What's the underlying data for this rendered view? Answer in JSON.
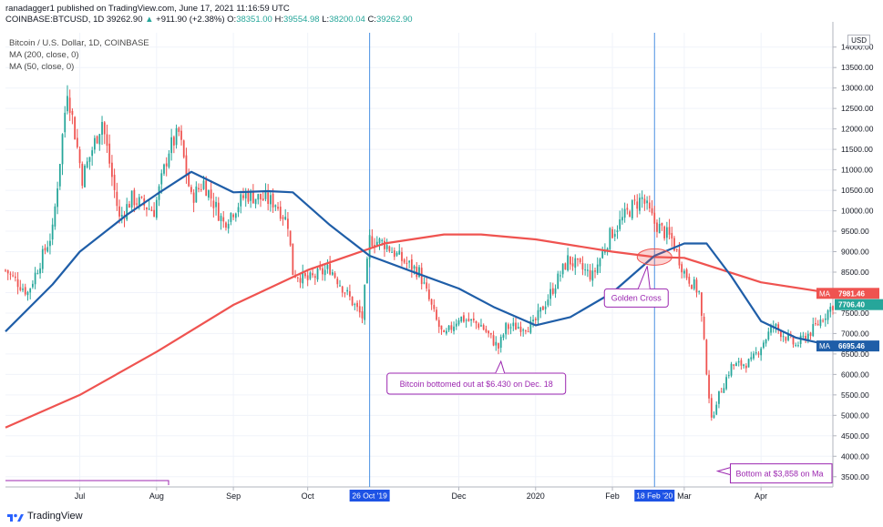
{
  "header": {
    "publisher_line": "ranadagger1 published on TradingView.com, June 17, 2021 11:16:59 UTC",
    "symbol": "COINBASE:BTCUSD, 1D",
    "price": "39262.90",
    "change": "+911.90 (+2.38%)",
    "o_label": "O:",
    "o": "38351.00",
    "h_label": "H:",
    "h": "39554.98",
    "l_label": "L:",
    "l": "38200.04",
    "c_label": "C:",
    "c": "39262.90"
  },
  "legend": {
    "title": "Bitcoin / U.S. Dollar, 1D, COINBASE",
    "ma200": "MA (200, close, 0)",
    "ma50": "MA (50, close, 0)"
  },
  "currency_label": "USD",
  "footer_brand": "TradingView",
  "colors": {
    "up": "#26a69a",
    "down": "#ef5350",
    "ma200": "#ef5350",
    "ma50": "#1f5ea8",
    "marker_line": "#4a90e2",
    "annotation": "#9c27b0",
    "grid": "#f0f3fa"
  },
  "chart_data": {
    "type": "candlestick",
    "title": "Bitcoin / U.S. Dollar, 1D, COINBASE",
    "y_axis": {
      "ylim": [
        3250,
        14350
      ],
      "ticks": [
        3500,
        4000,
        4500,
        5000,
        5500,
        6000,
        6500,
        7000,
        7500,
        8000,
        8500,
        9000,
        9500,
        10000,
        10500,
        11000,
        11500,
        12000,
        12500,
        13000,
        13500,
        14000
      ],
      "tick_labels": [
        "3500.00",
        "4000.00",
        "4500.00",
        "5000.00",
        "5500.00",
        "6000.00",
        "6500.00",
        "7000.00",
        "7500.00",
        "8000.00",
        "8500.00",
        "9000.00",
        "9500.00",
        "10000.00",
        "10500.00",
        "11000.00",
        "11500.00",
        "12000.00",
        "12500.00",
        "13000.00",
        "13500.00",
        "14000.00"
      ],
      "side": "right"
    },
    "x_axis": {
      "start_date": "2019-06-01",
      "end_date": "2020-04-30",
      "month_ticks": [
        {
          "date": "2019-07-01",
          "label": "Jul"
        },
        {
          "date": "2019-08-01",
          "label": "Aug"
        },
        {
          "date": "2019-09-01",
          "label": "Sep"
        },
        {
          "date": "2019-10-01",
          "label": "Oct"
        },
        {
          "date": "2019-12-01",
          "label": "Dec"
        },
        {
          "date": "2020-01-01",
          "label": "2020"
        },
        {
          "date": "2020-02-01",
          "label": "Feb"
        },
        {
          "date": "2020-03-01",
          "label": "Mar"
        },
        {
          "date": "2020-04-01",
          "label": "Apr"
        }
      ],
      "highlighted_dates": [
        {
          "date": "2019-10-26",
          "label": "26 Oct '19"
        },
        {
          "date": "2020-02-18",
          "label": "18 Feb '20"
        }
      ]
    },
    "price_anchors": [
      {
        "date": "2019-06-01",
        "close": 8550
      },
      {
        "date": "2019-06-10",
        "close": 8000
      },
      {
        "date": "2019-06-20",
        "close": 9500
      },
      {
        "date": "2019-06-26",
        "close": 13000
      },
      {
        "date": "2019-07-02",
        "close": 10800
      },
      {
        "date": "2019-07-10",
        "close": 12200
      },
      {
        "date": "2019-07-17",
        "close": 9800
      },
      {
        "date": "2019-07-22",
        "close": 10300
      },
      {
        "date": "2019-07-31",
        "close": 10000
      },
      {
        "date": "2019-08-06",
        "close": 11500
      },
      {
        "date": "2019-08-10",
        "close": 11900
      },
      {
        "date": "2019-08-15",
        "close": 10300
      },
      {
        "date": "2019-08-20",
        "close": 10700
      },
      {
        "date": "2019-08-28",
        "close": 9700
      },
      {
        "date": "2019-09-06",
        "close": 10400
      },
      {
        "date": "2019-09-18",
        "close": 10200
      },
      {
        "date": "2019-09-23",
        "close": 9700
      },
      {
        "date": "2019-09-25",
        "close": 8500
      },
      {
        "date": "2019-10-01",
        "close": 8300
      },
      {
        "date": "2019-10-10",
        "close": 8600
      },
      {
        "date": "2019-10-23",
        "close": 7400
      },
      {
        "date": "2019-10-26",
        "close": 9300
      },
      {
        "date": "2019-11-01",
        "close": 9200
      },
      {
        "date": "2019-11-08",
        "close": 8800
      },
      {
        "date": "2019-11-15",
        "close": 8500
      },
      {
        "date": "2019-11-22",
        "close": 7300
      },
      {
        "date": "2019-11-25",
        "close": 6900
      },
      {
        "date": "2019-12-01",
        "close": 7400
      },
      {
        "date": "2019-12-10",
        "close": 7200
      },
      {
        "date": "2019-12-17",
        "close": 6650
      },
      {
        "date": "2019-12-20",
        "close": 7150
      },
      {
        "date": "2019-12-31",
        "close": 7200
      },
      {
        "date": "2020-01-08",
        "close": 8100
      },
      {
        "date": "2020-01-14",
        "close": 8800
      },
      {
        "date": "2020-01-24",
        "close": 8400
      },
      {
        "date": "2020-01-31",
        "close": 9400
      },
      {
        "date": "2020-02-09",
        "close": 10100
      },
      {
        "date": "2020-02-13",
        "close": 10300
      },
      {
        "date": "2020-02-18",
        "close": 9700
      },
      {
        "date": "2020-02-25",
        "close": 9300
      },
      {
        "date": "2020-03-01",
        "close": 8500
      },
      {
        "date": "2020-03-07",
        "close": 8000
      },
      {
        "date": "2020-03-12",
        "close": 4850
      },
      {
        "date": "2020-03-14",
        "close": 5350
      },
      {
        "date": "2020-03-20",
        "close": 6200
      },
      {
        "date": "2020-03-28",
        "close": 6300
      },
      {
        "date": "2020-04-06",
        "close": 7200
      },
      {
        "date": "2020-04-15",
        "close": 6700
      },
      {
        "date": "2020-04-22",
        "close": 7100
      },
      {
        "date": "2020-04-30",
        "close": 7706
      }
    ],
    "series": [
      {
        "name": "MA (200, close, 0)",
        "color": "#ef5350",
        "last_value": "7981.46",
        "points": [
          {
            "date": "2019-06-01",
            "value": 4700
          },
          {
            "date": "2019-07-01",
            "value": 5500
          },
          {
            "date": "2019-08-01",
            "value": 6550
          },
          {
            "date": "2019-09-01",
            "value": 7700
          },
          {
            "date": "2019-10-01",
            "value": 8550
          },
          {
            "date": "2019-11-01",
            "value": 9200
          },
          {
            "date": "2019-11-25",
            "value": 9420
          },
          {
            "date": "2019-12-10",
            "value": 9420
          },
          {
            "date": "2020-01-01",
            "value": 9300
          },
          {
            "date": "2020-02-01",
            "value": 9000
          },
          {
            "date": "2020-02-18",
            "value": 8870
          },
          {
            "date": "2020-03-01",
            "value": 8850
          },
          {
            "date": "2020-04-01",
            "value": 8250
          },
          {
            "date": "2020-04-30",
            "value": 7981
          }
        ]
      },
      {
        "name": "MA (50, close, 0)",
        "color": "#1f5ea8",
        "last_value": "6695.46",
        "points": [
          {
            "date": "2019-06-01",
            "value": 7050
          },
          {
            "date": "2019-06-20",
            "value": 8200
          },
          {
            "date": "2019-07-01",
            "value": 9000
          },
          {
            "date": "2019-07-20",
            "value": 9900
          },
          {
            "date": "2019-08-01",
            "value": 10400
          },
          {
            "date": "2019-08-15",
            "value": 10950
          },
          {
            "date": "2019-09-01",
            "value": 10450
          },
          {
            "date": "2019-09-15",
            "value": 10480
          },
          {
            "date": "2019-09-25",
            "value": 10450
          },
          {
            "date": "2019-10-10",
            "value": 9650
          },
          {
            "date": "2019-10-26",
            "value": 8900
          },
          {
            "date": "2019-11-15",
            "value": 8450
          },
          {
            "date": "2019-12-01",
            "value": 8100
          },
          {
            "date": "2019-12-15",
            "value": 7650
          },
          {
            "date": "2020-01-01",
            "value": 7200
          },
          {
            "date": "2020-01-15",
            "value": 7400
          },
          {
            "date": "2020-02-01",
            "value": 8000
          },
          {
            "date": "2020-02-18",
            "value": 8900
          },
          {
            "date": "2020-03-01",
            "value": 9200
          },
          {
            "date": "2020-03-10",
            "value": 9200
          },
          {
            "date": "2020-03-20",
            "value": 8400
          },
          {
            "date": "2020-04-01",
            "value": 7300
          },
          {
            "date": "2020-04-15",
            "value": 6900
          },
          {
            "date": "2020-04-30",
            "value": 6695
          }
        ]
      }
    ],
    "price_labels": [
      {
        "tag": "MA",
        "value": "7981.46",
        "y": 7981.46,
        "color": "#ef5350"
      },
      {
        "tag": "",
        "value": "7706.40",
        "y": 7706.4,
        "color": "#26a69a"
      },
      {
        "tag": "MA",
        "value": "6695.46",
        "y": 6695.46,
        "color": "#1f5ea8"
      }
    ],
    "annotations": [
      {
        "text": "Golden Cross",
        "date": "2020-02-18",
        "y": 8870
      },
      {
        "text": "Bitcoin bottomed out at $6.430 on Dec. 18",
        "date": "2019-12-18",
        "y": 6430
      },
      {
        "text": "Bottom at $3,858 on Ma",
        "date": "2020-03-13",
        "y": 3858
      }
    ]
  }
}
